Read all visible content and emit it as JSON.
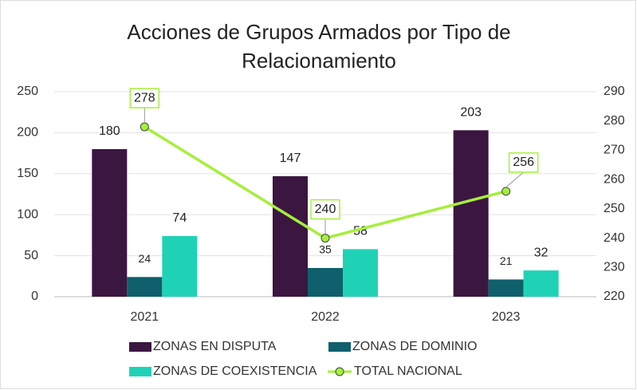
{
  "chart_data": {
    "type": "bar_line",
    "title": "Acciones de Grupos Armados por Tipo de Relacionamiento",
    "categories": [
      "2021",
      "2022",
      "2023"
    ],
    "series": [
      {
        "name": "ZONAS EN DISPUTA",
        "color": "#3b1640",
        "values": [
          180,
          147,
          203
        ]
      },
      {
        "name": "ZONAS DE DOMINIO",
        "color": "#0f5f6d",
        "values": [
          24,
          35,
          21
        ]
      },
      {
        "name": "ZONAS DE COEXISTENCIA",
        "color": "#20d2b5",
        "values": [
          74,
          58,
          32
        ]
      },
      {
        "name": "TOTAL NACIONAL",
        "color": "#a5ef3b",
        "type": "line",
        "axis": "y2",
        "values": [
          278,
          240,
          256
        ]
      }
    ],
    "ylim": [
      0,
      250
    ],
    "yticks": [
      0,
      50,
      100,
      150,
      200,
      250
    ],
    "y2lim": [
      220,
      290
    ],
    "y2ticks": [
      220,
      230,
      240,
      250,
      260,
      270,
      280,
      290
    ],
    "grid": true,
    "legend": "bottom"
  }
}
